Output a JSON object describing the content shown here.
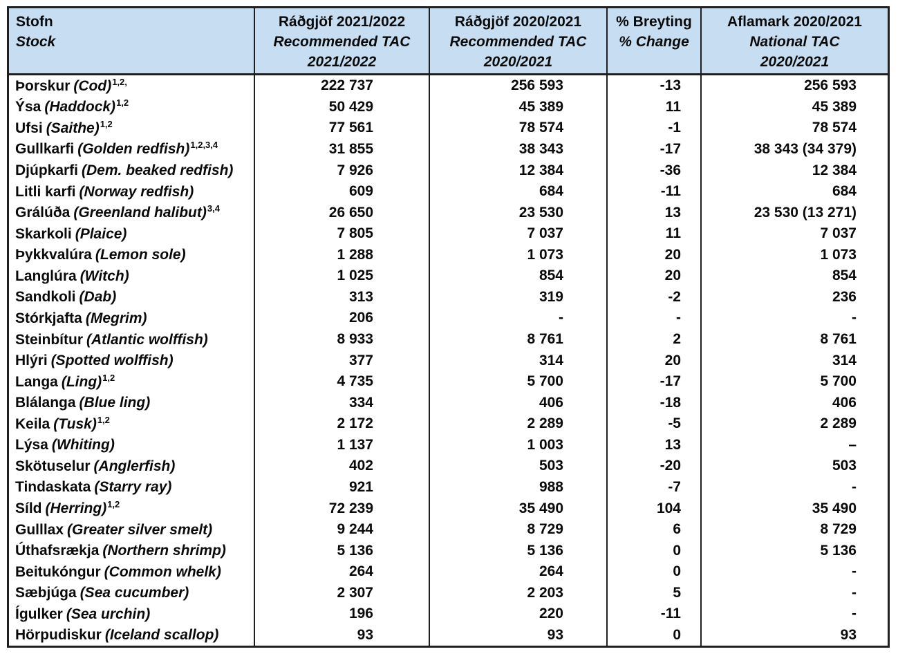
{
  "colors": {
    "header_bg": "#c7ddf2",
    "border": "#1f1f1f",
    "text": "#0a0a0a"
  },
  "chart_data": {
    "type": "table",
    "columns": [
      {
        "line1": "Stofn",
        "line2": "Stock",
        "line3": ""
      },
      {
        "line1": "Ráðgjöf 2021/2022",
        "line2": "Recommended TAC",
        "line3": "2021/2022"
      },
      {
        "line1": "Ráðgjöf 2020/2021",
        "line2": "Recommended TAC",
        "line3": "2020/2021"
      },
      {
        "line1": "% Breyting",
        "line2": "% Change",
        "line3": ""
      },
      {
        "line1": "Aflamark 2020/2021",
        "line2": "National TAC",
        "line3": "2020/2021"
      }
    ],
    "rows": [
      {
        "name_is": "Þorskur",
        "name_en": "(Cod)",
        "sup": "1,2,",
        "tac_2122": "222 737",
        "tac_2021": "256 593",
        "change": "-13",
        "national_tac": "256 593"
      },
      {
        "name_is": "Ýsa",
        "name_en": "(Haddock)",
        "sup": "1,2",
        "tac_2122": "50 429",
        "tac_2021": "45 389",
        "change": "11",
        "national_tac": "45 389"
      },
      {
        "name_is": "Ufsi",
        "name_en": "(Saithe)",
        "sup": "1,2",
        "tac_2122": "77 561",
        "tac_2021": "78 574",
        "change": "-1",
        "national_tac": "78 574"
      },
      {
        "name_is": "Gullkarfi",
        "name_en": "(Golden redfish)",
        "sup": "1,2,3,4",
        "tac_2122": "31 855",
        "tac_2021": "38 343",
        "change": "-17",
        "national_tac": "38 343 (34 379)"
      },
      {
        "name_is": "Djúpkarfi",
        "name_en": "(Dem. beaked redfish)",
        "sup": "",
        "tac_2122": "7 926",
        "tac_2021": "12 384",
        "change": "-36",
        "national_tac": "12 384"
      },
      {
        "name_is": "Litli karfi",
        "name_en": "(Norway redfish)",
        "sup": "",
        "tac_2122": "609",
        "tac_2021": "684",
        "change": "-11",
        "national_tac": "684"
      },
      {
        "name_is": "Grálúða",
        "name_en": "(Greenland halibut)",
        "sup": "3,4",
        "tac_2122": "26 650",
        "tac_2021": "23 530",
        "change": "13",
        "national_tac": "23 530 (13 271)"
      },
      {
        "name_is": "Skarkoli",
        "name_en": "(Plaice)",
        "sup": "",
        "tac_2122": "7 805",
        "tac_2021": "7 037",
        "change": "11",
        "national_tac": "7 037"
      },
      {
        "name_is": "Þykkvalúra",
        "name_en": "(Lemon sole)",
        "sup": "",
        "tac_2122": "1 288",
        "tac_2021": "1 073",
        "change": "20",
        "national_tac": "1 073"
      },
      {
        "name_is": "Langlúra",
        "name_en": "(Witch)",
        "sup": "",
        "tac_2122": "1 025",
        "tac_2021": "854",
        "change": "20",
        "national_tac": "854"
      },
      {
        "name_is": "Sandkoli",
        "name_en": "(Dab)",
        "sup": "",
        "tac_2122": "313",
        "tac_2021": "319",
        "change": "-2",
        "national_tac": "236"
      },
      {
        "name_is": "Stórkjafta",
        "name_en": "(Megrim)",
        "sup": "",
        "tac_2122": "206",
        "tac_2021": "-",
        "change": "-",
        "national_tac": "-"
      },
      {
        "name_is": "Steinbítur",
        "name_en": "(Atlantic wolffish)",
        "sup": "",
        "tac_2122": "8 933",
        "tac_2021": "8 761",
        "change": "2",
        "national_tac": "8 761"
      },
      {
        "name_is": "Hlýri",
        "name_en": "(Spotted wolffish)",
        "sup": "",
        "tac_2122": "377",
        "tac_2021": "314",
        "change": "20",
        "national_tac": "314"
      },
      {
        "name_is": "Langa",
        "name_en": "(Ling)",
        "sup": "1,2",
        "tac_2122": "4 735",
        "tac_2021": "5 700",
        "change": "-17",
        "national_tac": "5 700"
      },
      {
        "name_is": "Blálanga",
        "name_en": "(Blue ling)",
        "sup": "",
        "tac_2122": "334",
        "tac_2021": "406",
        "change": "-18",
        "national_tac": "406"
      },
      {
        "name_is": "Keila",
        "name_en": "(Tusk)",
        "sup": "1,2",
        "tac_2122": "2 172",
        "tac_2021": "2 289",
        "change": "-5",
        "national_tac": "2 289"
      },
      {
        "name_is": "Lýsa",
        "name_en": "(Whiting)",
        "sup": "",
        "tac_2122": "1 137",
        "tac_2021": "1 003",
        "change": "13",
        "national_tac": "–"
      },
      {
        "name_is": "Skötuselur",
        "name_en": "(Anglerfish)",
        "sup": "",
        "tac_2122": "402",
        "tac_2021": "503",
        "change": "-20",
        "national_tac": "503"
      },
      {
        "name_is": "Tindaskata",
        "name_en": "(Starry ray)",
        "sup": "",
        "tac_2122": "921",
        "tac_2021": "988",
        "change": "-7",
        "national_tac": "-"
      },
      {
        "name_is": "Síld",
        "name_en": "(Herring)",
        "sup": "1,2",
        "tac_2122": "72 239",
        "tac_2021": "35 490",
        "change": "104",
        "national_tac": "35 490"
      },
      {
        "name_is": "Gulllax",
        "name_en": "(Greater silver smelt)",
        "sup": "",
        "tac_2122": "9 244",
        "tac_2021": "8 729",
        "change": "6",
        "national_tac": "8 729"
      },
      {
        "name_is": "Úthafsrækja",
        "name_en": "(Northern shrimp)",
        "sup": "",
        "tac_2122": "5 136",
        "tac_2021": "5 136",
        "change": "0",
        "national_tac": "5 136"
      },
      {
        "name_is": "Beitukóngur",
        "name_en": "(Common whelk)",
        "sup": "",
        "tac_2122": "264",
        "tac_2021": "264",
        "change": "0",
        "national_tac": "-"
      },
      {
        "name_is": "Sæbjúga",
        "name_en": "(Sea cucumber)",
        "sup": "",
        "tac_2122": "2 307",
        "tac_2021": "2 203",
        "change": "5",
        "national_tac": "-"
      },
      {
        "name_is": "Ígulker",
        "name_en": "(Sea urchin)",
        "sup": "",
        "tac_2122": "196",
        "tac_2021": "220",
        "change": "-11",
        "national_tac": "-"
      },
      {
        "name_is": "Hörpudiskur",
        "name_en": "(Iceland scallop)",
        "sup": "",
        "tac_2122": "93",
        "tac_2021": "93",
        "change": "0",
        "national_tac": "93"
      }
    ]
  }
}
